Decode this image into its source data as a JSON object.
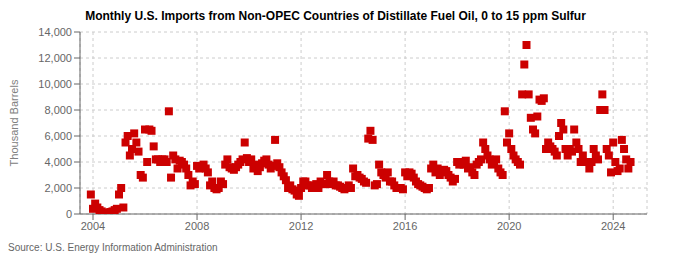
{
  "chart_data": {
    "type": "scatter",
    "title": "Monthly U.S. Imports from Non-OPEC Countries of Distillate Fuel Oil, 0 to 15 ppm Sulfur",
    "y_label": "Thousand Barrels",
    "annotation": "Source: U.S. Energy Information Administration",
    "color": "#cc0000",
    "marker": "square",
    "grid": true,
    "xlim": [
      2003.5,
      2025.3
    ],
    "ylim": [
      0,
      14000
    ],
    "xticks": [
      2004,
      2008,
      2012,
      2016,
      2020,
      2024
    ],
    "yticks": [
      0,
      {
        "value": 2000,
        "label": "2,000"
      },
      {
        "value": 4000,
        "label": "4,000"
      },
      {
        "value": 6000,
        "label": "6,000"
      },
      {
        "value": 8000,
        "label": "8,000"
      },
      {
        "value": 10000,
        "label": "10,000"
      },
      {
        "value": 12000,
        "label": "12,000"
      },
      {
        "value": 14000,
        "label": "14,000"
      }
    ],
    "x": [
      2003.917,
      2004.0,
      2004.083,
      2004.167,
      2004.25,
      2004.333,
      2004.417,
      2004.5,
      2004.583,
      2004.667,
      2004.75,
      2004.833,
      2004.917,
      2005.0,
      2005.083,
      2005.167,
      2005.25,
      2005.333,
      2005.417,
      2005.5,
      2005.583,
      2005.667,
      2005.75,
      2005.833,
      2005.917,
      2006.0,
      2006.083,
      2006.167,
      2006.25,
      2006.333,
      2006.417,
      2006.5,
      2006.583,
      2006.667,
      2006.75,
      2006.833,
      2006.917,
      2007.0,
      2007.083,
      2007.167,
      2007.25,
      2007.333,
      2007.417,
      2007.5,
      2007.583,
      2007.667,
      2007.75,
      2007.833,
      2007.917,
      2008.0,
      2008.083,
      2008.167,
      2008.25,
      2008.333,
      2008.417,
      2008.5,
      2008.583,
      2008.667,
      2008.75,
      2008.833,
      2008.917,
      2009.0,
      2009.083,
      2009.167,
      2009.25,
      2009.333,
      2009.417,
      2009.5,
      2009.583,
      2009.667,
      2009.75,
      2009.833,
      2009.917,
      2010.0,
      2010.083,
      2010.167,
      2010.25,
      2010.333,
      2010.417,
      2010.5,
      2010.583,
      2010.667,
      2010.75,
      2010.833,
      2010.917,
      2011.0,
      2011.083,
      2011.167,
      2011.25,
      2011.333,
      2011.417,
      2011.5,
      2011.583,
      2011.667,
      2011.75,
      2011.833,
      2011.917,
      2012.0,
      2012.083,
      2012.167,
      2012.25,
      2012.333,
      2012.417,
      2012.5,
      2012.583,
      2012.667,
      2012.75,
      2012.833,
      2012.917,
      2013.0,
      2013.083,
      2013.167,
      2013.25,
      2013.333,
      2013.417,
      2013.5,
      2013.583,
      2013.667,
      2013.75,
      2013.833,
      2013.917,
      2014.0,
      2014.083,
      2014.167,
      2014.25,
      2014.333,
      2014.417,
      2014.5,
      2014.583,
      2014.667,
      2014.75,
      2014.833,
      2014.917,
      2015.0,
      2015.083,
      2015.167,
      2015.25,
      2015.333,
      2015.417,
      2015.5,
      2015.583,
      2015.667,
      2015.75,
      2015.833,
      2015.917,
      2016.0,
      2016.083,
      2016.167,
      2016.25,
      2016.333,
      2016.417,
      2016.5,
      2016.583,
      2016.667,
      2016.75,
      2016.833,
      2016.917,
      2017.0,
      2017.083,
      2017.167,
      2017.25,
      2017.333,
      2017.417,
      2017.5,
      2017.583,
      2017.667,
      2017.75,
      2017.833,
      2017.917,
      2018.0,
      2018.083,
      2018.167,
      2018.25,
      2018.333,
      2018.417,
      2018.5,
      2018.583,
      2018.667,
      2018.75,
      2018.833,
      2018.917,
      2019.0,
      2019.083,
      2019.167,
      2019.25,
      2019.333,
      2019.417,
      2019.5,
      2019.583,
      2019.667,
      2019.75,
      2019.833,
      2019.917,
      2020.0,
      2020.083,
      2020.167,
      2020.25,
      2020.333,
      2020.417,
      2020.5,
      2020.583,
      2020.667,
      2020.75,
      2020.833,
      2020.917,
      2021.0,
      2021.083,
      2021.167,
      2021.25,
      2021.333,
      2021.417,
      2021.5,
      2021.583,
      2021.667,
      2021.75,
      2021.833,
      2021.917,
      2022.0,
      2022.083,
      2022.167,
      2022.25,
      2022.333,
      2022.417,
      2022.5,
      2022.583,
      2022.667,
      2022.75,
      2022.833,
      2022.917,
      2023.0,
      2023.083,
      2023.167,
      2023.25,
      2023.333,
      2023.417,
      2023.5,
      2023.583,
      2023.667,
      2023.75,
      2023.833,
      2023.917,
      2024.0,
      2024.083,
      2024.167,
      2024.25,
      2024.333,
      2024.417,
      2024.5,
      2024.583,
      2024.667
    ],
    "values": [
      1500,
      400,
      800,
      500,
      300,
      200,
      100,
      50,
      100,
      150,
      200,
      300,
      400,
      1500,
      2000,
      500,
      5500,
      6000,
      4500,
      5000,
      6200,
      5500,
      4800,
      3000,
      2800,
      6500,
      4000,
      6500,
      6400,
      5200,
      4200,
      4200,
      4000,
      4200,
      4200,
      4000,
      7900,
      2800,
      4500,
      4200,
      3500,
      4100,
      4000,
      3800,
      3500,
      3000,
      2200,
      2500,
      2300,
      3700,
      3500,
      3700,
      3800,
      3500,
      3200,
      2200,
      2500,
      2000,
      1900,
      2000,
      2500,
      2300,
      3800,
      4200,
      3600,
      3500,
      3400,
      3600,
      3800,
      4000,
      4200,
      5500,
      4300,
      4000,
      4200,
      3500,
      3800,
      3300,
      3600,
      3900,
      4100,
      4200,
      3800,
      3500,
      3700,
      5700,
      3900,
      3600,
      3200,
      2900,
      2600,
      2000,
      2200,
      1900,
      1800,
      1500,
      1400,
      2000,
      2500,
      2500,
      2200,
      2200,
      2000,
      2100,
      2300,
      2000,
      2500,
      2300,
      2300,
      3000,
      2500,
      2300,
      2500,
      2200,
      2200,
      2100,
      2000,
      1900,
      2000,
      2200,
      2000,
      3500,
      2900,
      3000,
      2800,
      2700,
      2500,
      2400,
      5800,
      6400,
      5700,
      2200,
      2300,
      3800,
      3200,
      3000,
      2800,
      3200,
      2500,
      2500,
      2200,
      2000,
      2000,
      2000,
      1900,
      3200,
      2900,
      3200,
      3100,
      2800,
      2500,
      2300,
      2200,
      2100,
      2000,
      1900,
      2000,
      3500,
      3800,
      3200,
      3500,
      3000,
      3200,
      3400,
      3300,
      3000,
      2800,
      2500,
      2700,
      4000,
      3800,
      4000,
      3800,
      4100,
      3500,
      3600,
      3200,
      3000,
      3800,
      4000,
      4200,
      5500,
      5000,
      4500,
      4200,
      3800,
      4000,
      4200,
      3500,
      3200,
      3000,
      7900,
      5500,
      6200,
      5000,
      4500,
      4200,
      4000,
      3800,
      9200,
      11500,
      13000,
      9200,
      7400,
      6500,
      6200,
      7500,
      8800,
      8700,
      8900,
      5000,
      5500,
      5200,
      5000,
      4800,
      4500,
      6000,
      7000,
      6500,
      5000,
      4500,
      5000,
      4800,
      6500,
      5500,
      5000,
      4000,
      4500,
      4000,
      4000,
      3500,
      4000,
      5000,
      4500,
      4200,
      8000,
      9200,
      8000,
      5000,
      4500,
      3200,
      5500,
      4000,
      3300,
      3500,
      5700,
      5000,
      4200,
      3500,
      4000
    ]
  }
}
